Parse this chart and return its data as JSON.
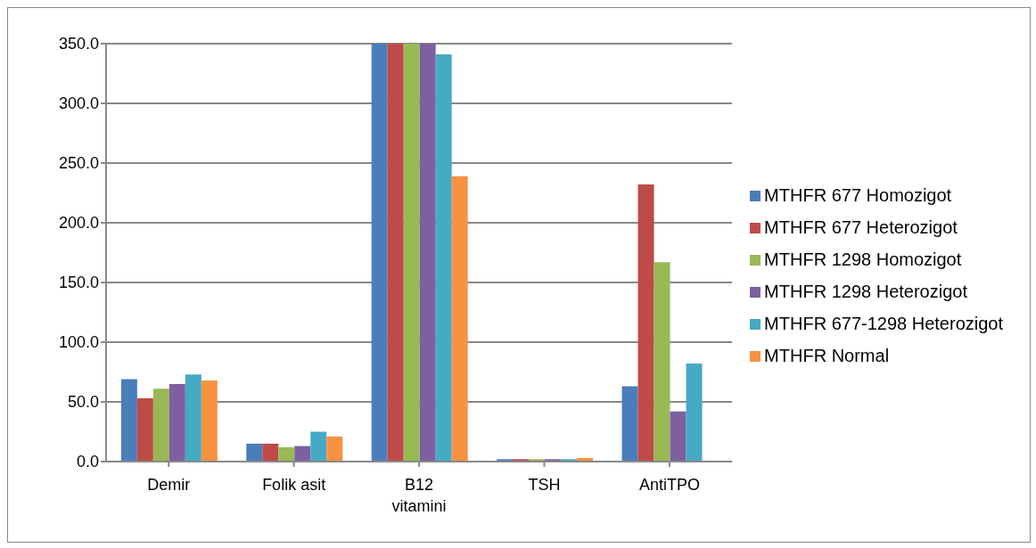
{
  "chart_data": {
    "type": "bar",
    "categories": [
      "Demir",
      "Folik asit",
      "B12 vitamini",
      "TSH",
      "AntiTPO"
    ],
    "series": [
      {
        "name": "MTHFR 677 Homozigot",
        "color": "#4a7ebb",
        "values": [
          69,
          15,
          350,
          2,
          63
        ]
      },
      {
        "name": "MTHFR 677 Heterozigot",
        "color": "#be4b48",
        "values": [
          53,
          15,
          350,
          2,
          232
        ]
      },
      {
        "name": "MTHFR 1298 Homozigot",
        "color": "#98b954",
        "values": [
          61,
          12,
          350,
          2,
          167
        ]
      },
      {
        "name": "MTHFR 1298 Heterozigot",
        "color": "#7d60a0",
        "values": [
          65,
          13,
          350,
          2,
          42
        ]
      },
      {
        "name": "MTHFR 677-1298 Heterozigot",
        "color": "#46aac5",
        "values": [
          73,
          25,
          341,
          2,
          82
        ]
      },
      {
        "name": "MTHFR Normal",
        "color": "#f69240",
        "values": [
          68,
          21,
          239,
          3,
          null
        ]
      }
    ],
    "ylim": [
      0,
      350
    ],
    "yticks": [
      {
        "value": 0,
        "label": "0.0"
      },
      {
        "value": 50,
        "label": "50.0"
      },
      {
        "value": 100,
        "label": "100.0"
      },
      {
        "value": 150,
        "label": "150.0"
      },
      {
        "value": 200,
        "label": "200.0"
      },
      {
        "value": 250,
        "label": "250.0"
      },
      {
        "value": 300,
        "label": "300.0"
      },
      {
        "value": 350,
        "label": "350.0"
      }
    ],
    "grid": "y",
    "legend": "right"
  }
}
